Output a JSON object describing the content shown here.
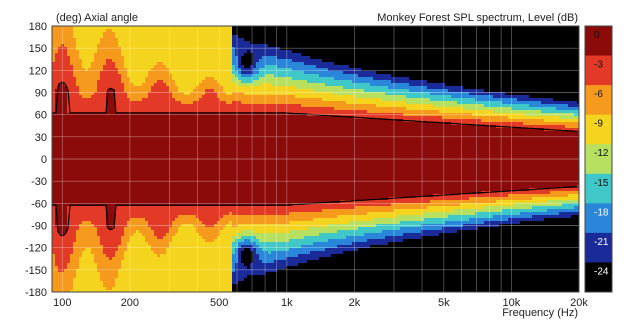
{
  "chart_data": {
    "type": "heatmap",
    "title": "Monkey Forest SPL spectrum, Level  (dB)",
    "ylabel": "(deg)  Axial angle",
    "xlabel": "Frequency  (Hz)",
    "x_scale": "log",
    "xlim": [
      90,
      20000
    ],
    "ylim": [
      -180,
      180
    ],
    "x_ticks": [
      {
        "value": 100,
        "label": "100"
      },
      {
        "value": 200,
        "label": "200"
      },
      {
        "value": 500,
        "label": "500"
      },
      {
        "value": 1000,
        "label": "1k"
      },
      {
        "value": 2000,
        "label": "2k"
      },
      {
        "value": 5000,
        "label": "5k"
      },
      {
        "value": 10000,
        "label": "10k"
      },
      {
        "value": 20000,
        "label": "20k"
      }
    ],
    "y_ticks": [
      {
        "value": 180,
        "label": "180"
      },
      {
        "value": 150,
        "label": "150"
      },
      {
        "value": 120,
        "label": "120"
      },
      {
        "value": 90,
        "label": "90"
      },
      {
        "value": 60,
        "label": "60"
      },
      {
        "value": 30,
        "label": "30"
      },
      {
        "value": 0,
        "label": "0"
      },
      {
        "value": -30,
        "label": "-30"
      },
      {
        "value": -60,
        "label": "-60"
      },
      {
        "value": -90,
        "label": "-90"
      },
      {
        "value": -120,
        "label": "-120"
      },
      {
        "value": -150,
        "label": "-150"
      },
      {
        "value": -180,
        "label": "-180"
      }
    ],
    "color_scale": [
      {
        "label": "0",
        "color": "#8b0a0a"
      },
      {
        "label": "-3",
        "color": "#e23a26"
      },
      {
        "label": "-6",
        "color": "#f59a1c"
      },
      {
        "label": "-9",
        "color": "#f4d41e"
      },
      {
        "label": "-12",
        "color": "#b8e060"
      },
      {
        "label": "-15",
        "color": "#40c8c8"
      },
      {
        "label": "-18",
        "color": "#2a86d8"
      },
      {
        "label": "-21",
        "color": "#1a2a98"
      },
      {
        "label": "-24",
        "color": "#000000"
      }
    ],
    "contour_lines": [
      {
        "level": -3,
        "color": "#000000"
      }
    ],
    "grid": true,
    "legend_position": "right"
  }
}
